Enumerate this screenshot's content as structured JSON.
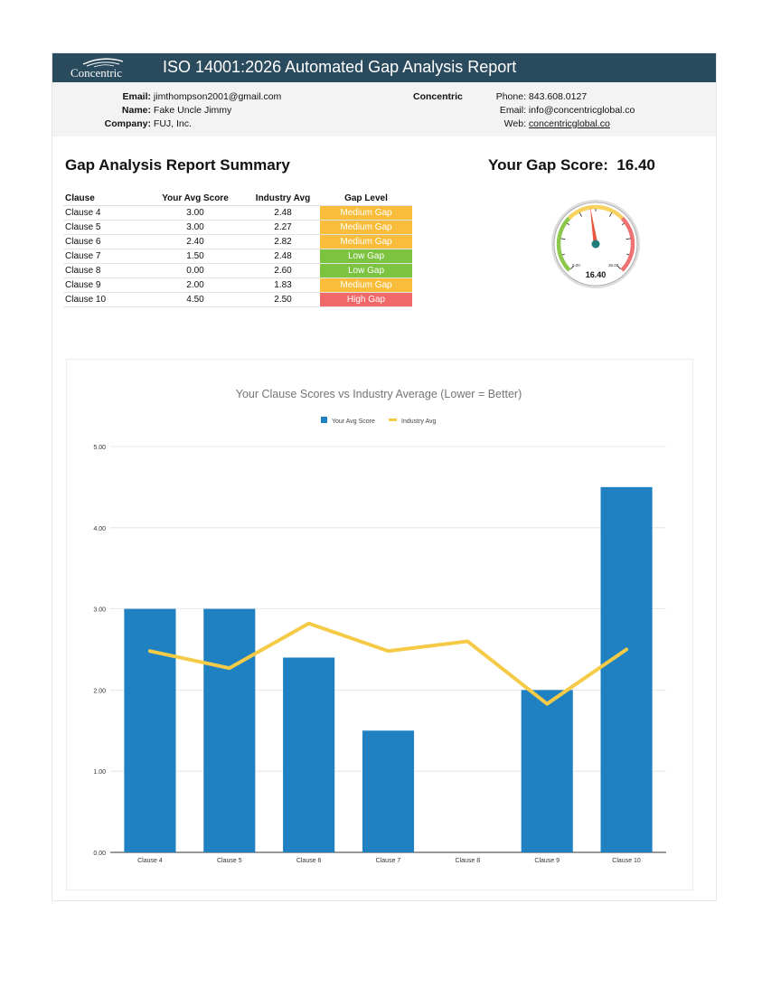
{
  "header": {
    "logo_text": "Concentric",
    "title": "ISO 14001:2026 Automated Gap Analysis Report"
  },
  "contact": {
    "email_label": "Email:",
    "email": "jimthompson2001@gmail.com",
    "name_label": "Name:",
    "name": "Fake Uncle Jimmy",
    "company_label": "Company:",
    "company": "FUJ, Inc.",
    "org": "Concentric",
    "phone_label": "Phone:",
    "phone": "843.608.0127",
    "org_email_label": "Email:",
    "org_email": "info@concentricglobal.co",
    "web_label": "Web:",
    "web": "concentricglobal.co"
  },
  "summary": {
    "title": "Gap Analysis Report Summary",
    "score_label": "Your Gap Score:",
    "score": "16.40",
    "columns": [
      "Clause",
      "Your Avg Score",
      "Industry Avg",
      "Gap Level"
    ],
    "rows": [
      {
        "clause": "Clause 4",
        "score": "3.00",
        "industry": "2.48",
        "level": "Medium Gap",
        "color": "#f9bd3b"
      },
      {
        "clause": "Clause 5",
        "score": "3.00",
        "industry": "2.27",
        "level": "Medium Gap",
        "color": "#f9bd3b"
      },
      {
        "clause": "Clause 6",
        "score": "2.40",
        "industry": "2.82",
        "level": "Medium Gap",
        "color": "#f9bd3b"
      },
      {
        "clause": "Clause 7",
        "score": "1.50",
        "industry": "2.48",
        "level": "Low Gap",
        "color": "#7cc33f"
      },
      {
        "clause": "Clause 8",
        "score": "0.00",
        "industry": "2.60",
        "level": "Low Gap",
        "color": "#7cc33f"
      },
      {
        "clause": "Clause 9",
        "score": "2.00",
        "industry": "1.83",
        "level": "Medium Gap",
        "color": "#f9bd3b"
      },
      {
        "clause": "Clause 10",
        "score": "4.50",
        "industry": "2.50",
        "level": "High Gap",
        "color": "#f0686a"
      }
    ]
  },
  "gauge": {
    "min_label": "0.00",
    "max_label": "35.00",
    "value_label": "16.40",
    "value": 16.4,
    "min": 0,
    "max": 35
  },
  "chart_data": {
    "type": "bar",
    "title": "Your Clause Scores vs Industry Average (Lower = Better)",
    "categories": [
      "Clause 4",
      "Clause 5",
      "Clause 6",
      "Clause 7",
      "Clause 8",
      "Clause 9",
      "Clause 10"
    ],
    "series": [
      {
        "name": "Your Avg Score",
        "type": "bar",
        "color": "#1f80c2",
        "values": [
          3.0,
          3.0,
          2.4,
          1.5,
          0.0,
          2.0,
          4.5
        ]
      },
      {
        "name": "Industry Avg",
        "type": "line",
        "color": "#f5ca47",
        "values": [
          2.48,
          2.27,
          2.82,
          2.48,
          2.6,
          1.83,
          2.5
        ]
      }
    ],
    "ylim": [
      0,
      5
    ],
    "yticks": [
      "0.00",
      "1.00",
      "2.00",
      "3.00",
      "4.00",
      "5.00"
    ],
    "grid": true,
    "legend": "top-center"
  }
}
